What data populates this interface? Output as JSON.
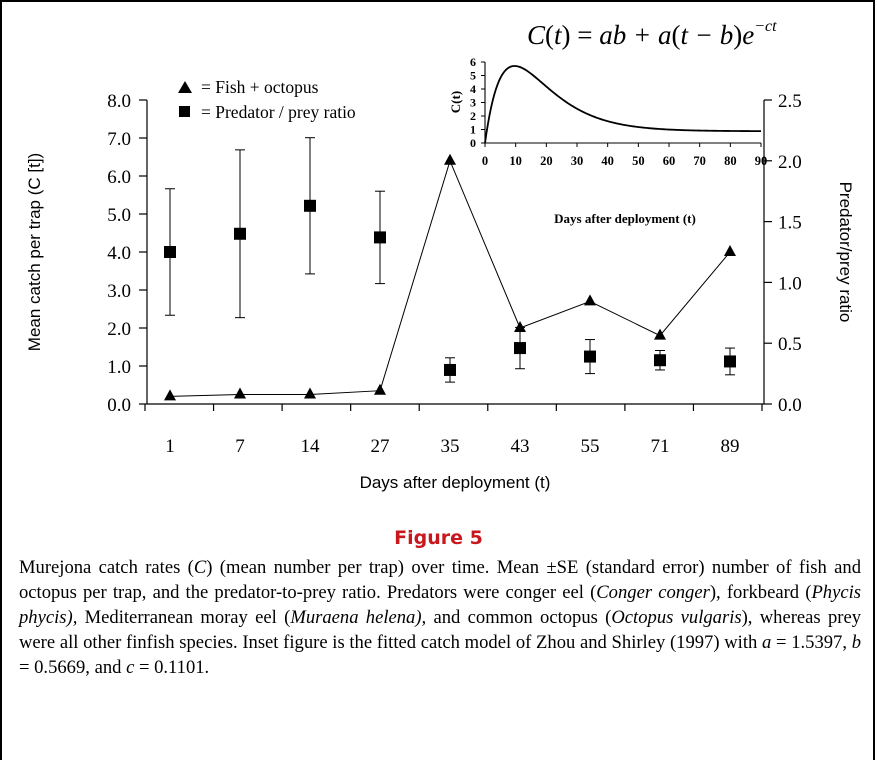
{
  "figure": {
    "title": "Figure 5",
    "caption": {
      "p1": "Murejona catch rates (",
      "p2": "C",
      "p3": ") (mean number per trap) over time. Mean ±SE (standard error) number of fish and octopus per trap, and the predator-to-prey ratio. Predators were conger eel (",
      "p4": "Conger conger",
      "p5": "), forkbeard (",
      "p6": "Phycis phycis),",
      "p7": " Mediterranean moray eel (",
      "p8": "Muraena helena),",
      "p9": " and common octopus (",
      "p10": "Octopus vulgaris",
      "p11": "), whereas prey were all other finfish species. Inset figure is the fitted catch model of Zhou and Shirley (1997) with ",
      "p12": "a",
      "p13": " = 1.5397, ",
      "p14": "b",
      "p15": " = 0.5669, and ",
      "p16": "c",
      "p17": " = 0.1101."
    }
  },
  "chart_data": [
    {
      "type": "line",
      "categories": [
        "1",
        "7",
        "14",
        "27",
        "35",
        "43",
        "55",
        "71",
        "89"
      ],
      "xlabel": "Days after deployment (t)",
      "ylabel": "Mean catch per trap (C [t])",
      "ylabel_right": "Predator/prey ratio",
      "ylim": [
        0,
        8
      ],
      "ylim_right": [
        0,
        2.5
      ],
      "yticks": [
        "0.0",
        "1.0",
        "2.0",
        "3.0",
        "4.0",
        "5.0",
        "6.0",
        "7.0",
        "8.0"
      ],
      "yticks_right": [
        "0.0",
        "0.5",
        "1.0",
        "1.5",
        "2.0",
        "2.5"
      ],
      "legend": {
        "position": "top-left",
        "fish_label": "= Fish + octopus",
        "ratio_label": "= Predator / prey ratio"
      },
      "series": [
        {
          "name": "Fish + octopus",
          "axis": "left",
          "marker": "triangle",
          "values": [
            0.2,
            0.25,
            0.25,
            0.35,
            6.4,
            2.0,
            2.7,
            1.8,
            4.0
          ]
        },
        {
          "name": "Predator / prey ratio",
          "axis": "right",
          "marker": "square",
          "values": [
            1.25,
            1.4,
            1.63,
            1.37,
            0.28,
            0.46,
            0.39,
            0.36,
            0.35
          ],
          "error": [
            0.52,
            0.69,
            0.56,
            0.38,
            0.1,
            0.17,
            0.14,
            0.08,
            0.11
          ]
        }
      ]
    },
    {
      "type": "line",
      "inset": true,
      "equation": "C(t) = ab + a(t − b)e^−ct",
      "eq_lhs": "C",
      "eq_t": "t",
      "eq_rhs1": "ab + a",
      "eq_rhs2": "t − b",
      "eq_e": "e",
      "eq_exp": "−ct",
      "xlabel": "Days after deployment (t)",
      "ylabel": "C(t)",
      "xlim": [
        0,
        90
      ],
      "ylim": [
        0,
        6
      ],
      "xticks": [
        "0",
        "10",
        "20",
        "30",
        "40",
        "50",
        "60",
        "70",
        "80",
        "90"
      ],
      "yticks": [
        "0",
        "1",
        "2",
        "3",
        "4",
        "5",
        "6"
      ],
      "params": {
        "a": 1.5397,
        "b": 0.5669,
        "c": 0.1101
      }
    }
  ]
}
